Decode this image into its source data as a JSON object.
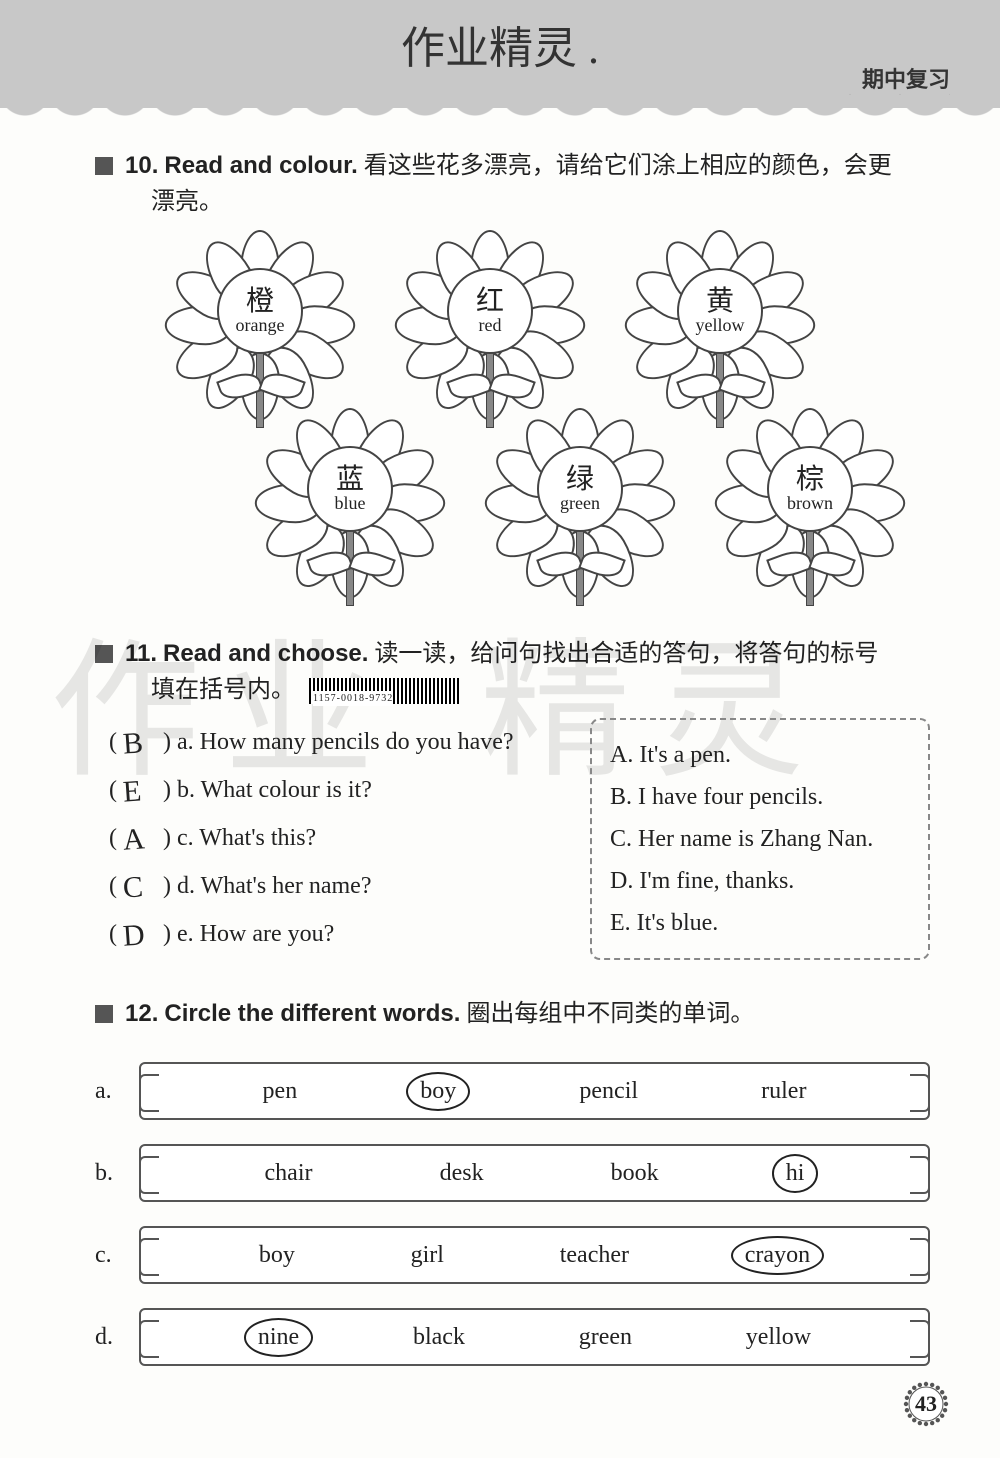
{
  "header": {
    "title": "作业精灵 .",
    "tag": "期中复习"
  },
  "watermark": {
    "left": "作业",
    "right": "精灵"
  },
  "q10": {
    "number": "10.",
    "title_en": "Read and colour.",
    "title_cn_1": "看这些花多漂亮，请给它们涂上相应的颜色，会更",
    "title_cn_2": "漂亮。",
    "flowers": [
      {
        "cn": "橙",
        "en": "orange"
      },
      {
        "cn": "红",
        "en": "red"
      },
      {
        "cn": "黄",
        "en": "yellow"
      },
      {
        "cn": "蓝",
        "en": "blue"
      },
      {
        "cn": "绿",
        "en": "green"
      },
      {
        "cn": "棕",
        "en": "brown"
      }
    ]
  },
  "q11": {
    "number": "11.",
    "title_en": "Read and choose.",
    "title_cn_1": "读一读，给问句找出合适的答句，将答句的标号",
    "title_cn_2": "填在括号内。",
    "barcode_label": "1157-0018-9732",
    "questions": [
      {
        "ans": "B",
        "letter": "a.",
        "text": "How many pencils do you have?"
      },
      {
        "ans": "E",
        "letter": "b.",
        "text": "What colour is it?"
      },
      {
        "ans": "A",
        "letter": "c.",
        "text": "What's this?"
      },
      {
        "ans": "C",
        "letter": "d.",
        "text": "What's her name?"
      },
      {
        "ans": "D",
        "letter": "e.",
        "text": "How are you?"
      }
    ],
    "answers": [
      "A. It's a pen.",
      "B. I have four pencils.",
      "C. Her name is Zhang Nan.",
      "D. I'm fine, thanks.",
      "E. It's blue."
    ]
  },
  "q12": {
    "number": "12.",
    "title_en": "Circle the different words.",
    "title_cn": "圈出每组中不同类的单词。",
    "rows": [
      {
        "label": "a.",
        "words": [
          "pen",
          "boy",
          "pencil",
          "ruler"
        ],
        "circled": 1
      },
      {
        "label": "b.",
        "words": [
          "chair",
          "desk",
          "book",
          "hi"
        ],
        "circled": 3
      },
      {
        "label": "c.",
        "words": [
          "boy",
          "girl",
          "teacher",
          "crayon"
        ],
        "circled": 3
      },
      {
        "label": "d.",
        "words": [
          "nine",
          "black",
          "green",
          "yellow"
        ],
        "circled": 0
      }
    ]
  },
  "page_number": "43"
}
